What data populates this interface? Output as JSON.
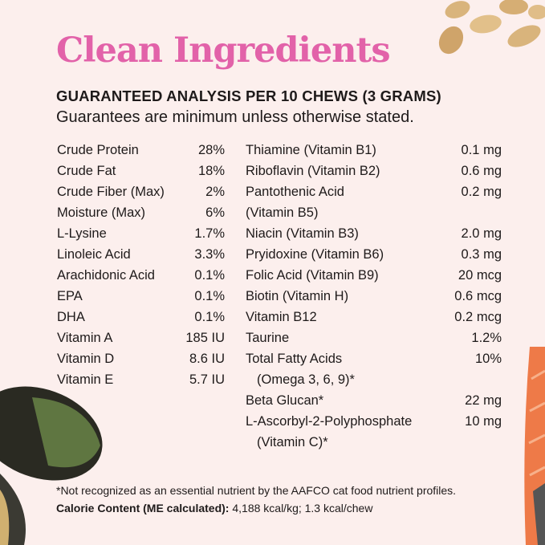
{
  "title": "Clean Ingredients",
  "heading": "GUARANTEED ANALYSIS PER 10 CHEWS (3 GRAMS)",
  "subheading": "Guarantees are minimum unless otherwise stated.",
  "colors": {
    "title": "#e262a9",
    "background": "#fcefed"
  },
  "left_column": [
    {
      "name": "Crude Protein",
      "value": "28%"
    },
    {
      "name": "Crude Fat",
      "value": "18%"
    },
    {
      "name": "Crude Fiber (Max)",
      "value": "2%"
    },
    {
      "name": "Moisture (Max)",
      "value": "6%"
    },
    {
      "name": "L-Lysine",
      "value": "1.7%"
    },
    {
      "name": "Linoleic Acid",
      "value": "3.3%"
    },
    {
      "name": "Arachidonic Acid",
      "value": "0.1%"
    },
    {
      "name": "EPA",
      "value": "0.1%"
    },
    {
      "name": "DHA",
      "value": "0.1%"
    },
    {
      "name": "Vitamin A",
      "value": "185 IU"
    },
    {
      "name": "Vitamin D",
      "value": "8.6 IU"
    },
    {
      "name": "Vitamin E",
      "value": "5.7 IU"
    }
  ],
  "right_column": [
    {
      "name": "Thiamine (Vitamin B1)",
      "value": "0.1 mg"
    },
    {
      "name": "Riboflavin (Vitamin B2)",
      "value": "0.6 mg"
    },
    {
      "name": "Pantothenic Acid",
      "name_line2": "(Vitamin B5)",
      "value": "0.2 mg"
    },
    {
      "name": "Niacin (Vitamin B3)",
      "value": "2.0 mg"
    },
    {
      "name": "Pryidoxine (Vitamin B6)",
      "value": "0.3 mg"
    },
    {
      "name": "Folic Acid (Vitamin B9)",
      "value": "20 mcg"
    },
    {
      "name": "Biotin (Vitamin H)",
      "value": "0.6 mcg"
    },
    {
      "name": "Vitamin B12",
      "value": "0.2 mcg"
    },
    {
      "name": "Taurine",
      "value": "1.2%"
    },
    {
      "name": "Total Fatty Acids",
      "name_line2": "(Omega 3, 6, 9)*",
      "value": "10%"
    },
    {
      "name": "Beta Glucan*",
      "value": "22 mg"
    },
    {
      "name": "L-Ascorbyl-2-Polyphosphate",
      "name_line2": "(Vitamin C)*",
      "value": "10 mg"
    }
  ],
  "footnote": "*Not recognized as an essential nutrient by the AAFCO cat food nutrient profiles.",
  "calorie": {
    "label": "Calorie Content (ME calculated):",
    "value": "4,188 kcal/kg; 1.3 kcal/chew"
  }
}
